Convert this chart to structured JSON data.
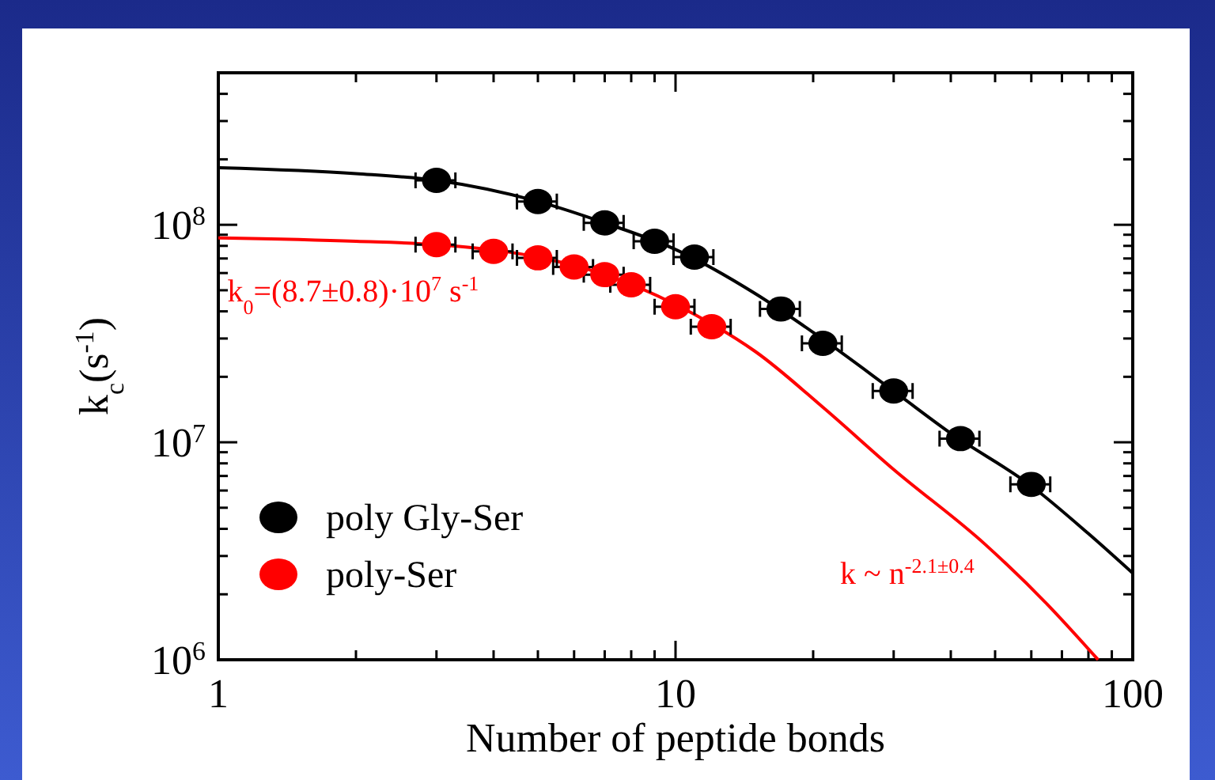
{
  "chart_data": {
    "type": "scatter",
    "xlabel": "Number of peptide bonds",
    "ylabel": "k$_{c}$(s$^{-1}$)",
    "log": "xy",
    "xlim": [
      1,
      100
    ],
    "ylim": [
      1000000,
      500000000
    ],
    "xticks": [
      1,
      {
        "value": 2,
        "label": null
      },
      {
        "value": 3,
        "label": null
      },
      {
        "value": 4,
        "label": null
      },
      {
        "value": 5,
        "label": null
      },
      {
        "value": 6,
        "label": null
      },
      {
        "value": 7,
        "label": null
      },
      {
        "value": 8,
        "label": null
      },
      {
        "value": 9,
        "label": null
      },
      10,
      {
        "value": 20,
        "label": null
      },
      {
        "value": 30,
        "label": null
      },
      {
        "value": 40,
        "label": null
      },
      {
        "value": 50,
        "label": null
      },
      {
        "value": 60,
        "label": null
      },
      {
        "value": 70,
        "label": null
      },
      {
        "value": 80,
        "label": null
      },
      {
        "value": 90,
        "label": null
      },
      100
    ],
    "yticks": [
      {
        "value": 1000000,
        "label": "10$^{6}$"
      },
      {
        "value": 2000000,
        "label": null
      },
      {
        "value": 3000000,
        "label": null
      },
      {
        "value": 4000000,
        "label": null
      },
      {
        "value": 5000000,
        "label": null
      },
      {
        "value": 6000000,
        "label": null
      },
      {
        "value": 7000000,
        "label": null
      },
      {
        "value": 8000000,
        "label": null
      },
      {
        "value": 9000000,
        "label": null
      },
      {
        "value": 10000000,
        "label": "10$^{7}$"
      },
      {
        "value": 20000000,
        "label": null
      },
      {
        "value": 30000000,
        "label": null
      },
      {
        "value": 40000000,
        "label": null
      },
      {
        "value": 50000000,
        "label": null
      },
      {
        "value": 60000000,
        "label": null
      },
      {
        "value": 70000000,
        "label": null
      },
      {
        "value": 80000000,
        "label": null
      },
      {
        "value": 90000000,
        "label": null
      },
      {
        "value": 100000000,
        "label": "10$^{8}$"
      },
      {
        "value": 200000000,
        "label": null
      },
      {
        "value": 300000000,
        "label": null
      },
      {
        "value": 400000000,
        "label": null
      },
      {
        "value": 500000000,
        "label": null
      }
    ],
    "grid": false,
    "legend": "bottom left",
    "series": [
      {
        "type": "line",
        "marker": "none",
        "color": "#000000",
        "x": [
          1,
          2,
          3,
          5,
          7,
          10,
          15,
          20,
          30,
          40,
          60,
          80,
          100
        ],
        "values": [
          183000000,
          172000000,
          160000000,
          128000000,
          102000000,
          77000000,
          48000000,
          32000000,
          17200000,
          11000000,
          6300000,
          3800000,
          2500000
        ]
      },
      {
        "type": "line",
        "marker": "none",
        "color": "#ff0000",
        "x": [
          1,
          2,
          3,
          5,
          7,
          10,
          12,
          15,
          21,
          30,
          47.5,
          65,
          84
        ],
        "values": [
          87000000,
          84000000,
          81000000,
          71000000,
          59000000,
          43000000,
          35000000,
          26000000,
          14500000,
          7500000,
          3400000,
          1800000,
          1000000
        ]
      },
      {
        "name": "poly Gly-Ser",
        "marker": "circle",
        "color": "#000000",
        "x": [
          3,
          5,
          7,
          9,
          11,
          17,
          21,
          30,
          42,
          60
        ],
        "values": [
          160000000,
          128000000,
          102000000,
          84000000,
          71000000,
          41000000,
          28500000,
          17200000,
          10400000,
          6400000
        ],
        "xerrors": [
          0.3,
          0.5,
          0.7,
          0.9,
          1.1,
          1.7,
          2.1,
          3,
          4.2,
          6
        ]
      },
      {
        "name": "poly-Ser",
        "marker": "circle",
        "color": "#ff0000",
        "x": [
          3,
          4,
          5,
          6,
          7,
          8,
          10,
          12
        ],
        "values": [
          81000000,
          75500000,
          70500000,
          64000000,
          59000000,
          53000000,
          42000000,
          34000000
        ],
        "xerrors": [
          0.3,
          0.4,
          0.5,
          0.6,
          0.7,
          0.8,
          1,
          1.2
        ]
      }
    ],
    "annotations": [
      "k$_{0}$=(8.7±0.8)·10$^{7}$ s$^{-1}$",
      "k ~ n$^{-2.1±0.4}$"
    ]
  }
}
